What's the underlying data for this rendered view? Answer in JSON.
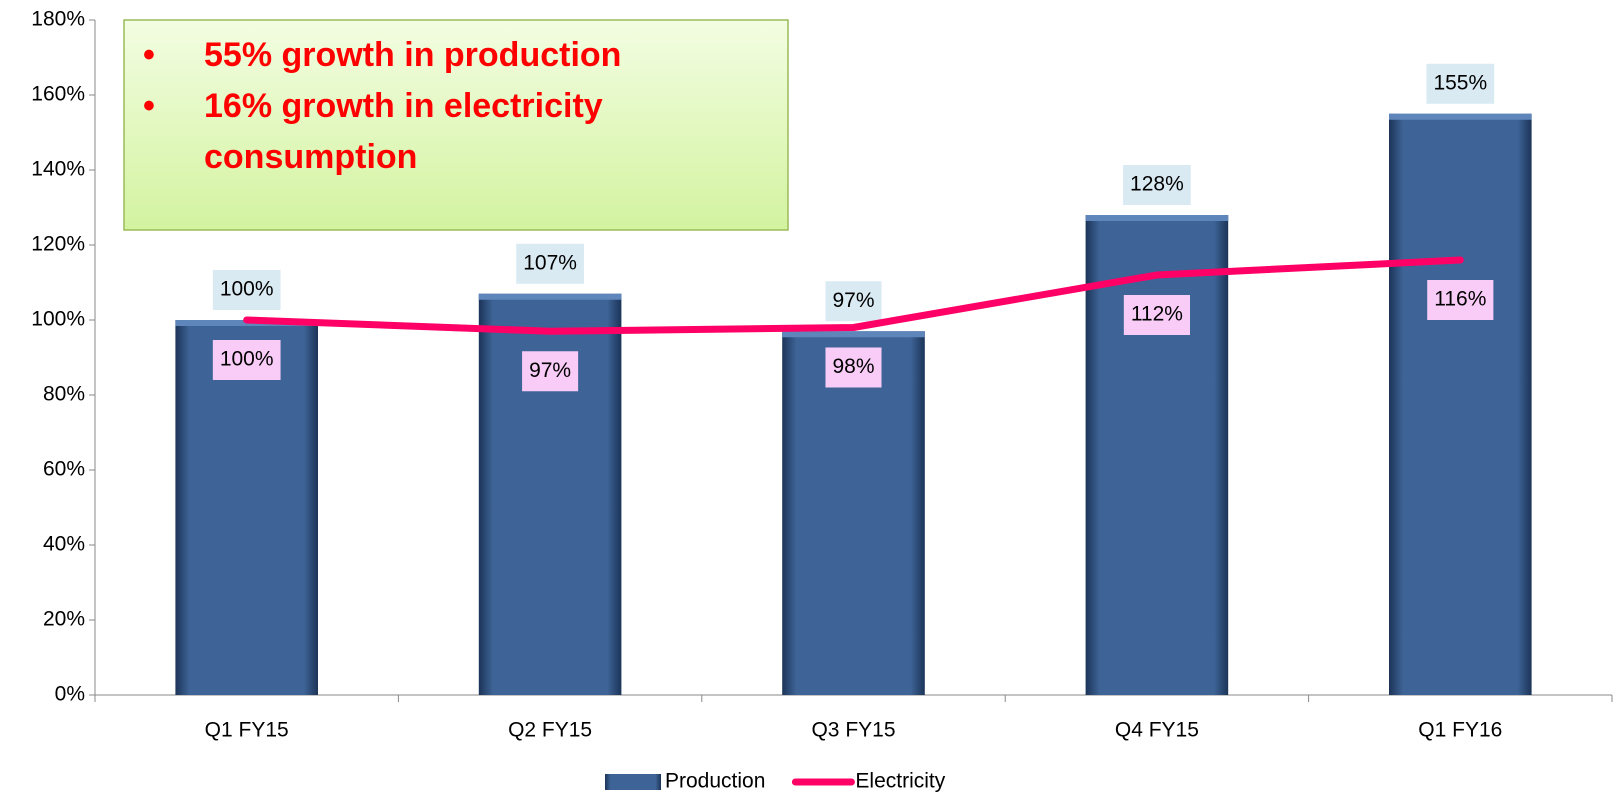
{
  "chart_data": {
    "type": "bar",
    "categories": [
      "Q1 FY15",
      "Q2 FY15",
      "Q3 FY15",
      "Q4 FY15",
      "Q1 FY16"
    ],
    "series": [
      {
        "name": "Production",
        "type": "bar",
        "color": "#3e6497",
        "values": [
          100,
          107,
          97,
          128,
          155
        ],
        "value_labels": [
          "100%",
          "107%",
          "97%",
          "128%",
          "155%"
        ]
      },
      {
        "name": "Electricity",
        "type": "line",
        "color": "#ff0066",
        "values": [
          100,
          97,
          98,
          112,
          116
        ],
        "value_labels": [
          "100%",
          "97%",
          "98%",
          "112%",
          "116%"
        ]
      }
    ],
    "ylim": [
      0,
      180
    ],
    "yticks": [
      {
        "value": 0,
        "label": "0%"
      },
      {
        "value": 20,
        "label": "20%"
      },
      {
        "value": 40,
        "label": "40%"
      },
      {
        "value": 60,
        "label": "60%"
      },
      {
        "value": 80,
        "label": "80%"
      },
      {
        "value": 100,
        "label": "100%"
      },
      {
        "value": 120,
        "label": "120%"
      },
      {
        "value": 140,
        "label": "140%"
      },
      {
        "value": 160,
        "label": "160%"
      },
      {
        "value": 180,
        "label": "180%"
      }
    ],
    "annotations": [
      "55% growth in production",
      "16% growth in electricity",
      "consumption"
    ],
    "legend": "bottom"
  }
}
